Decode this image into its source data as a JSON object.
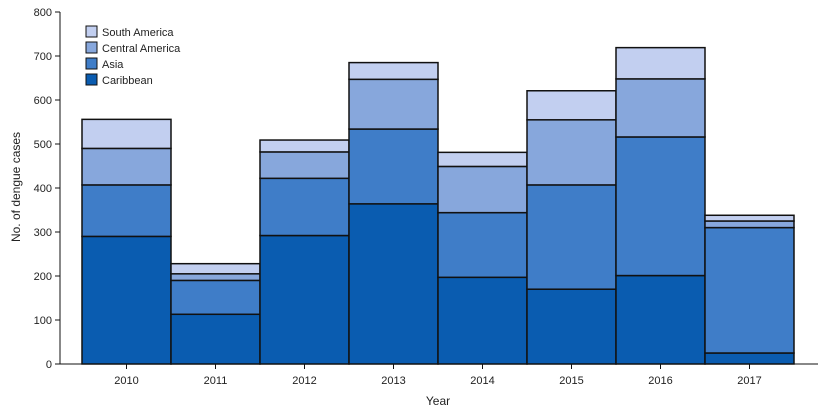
{
  "chart_data": {
    "type": "bar",
    "stacked": true,
    "xlabel": "Year",
    "ylabel": "No. of dengue cases",
    "ylim": [
      0,
      800
    ],
    "yticks": [
      0,
      100,
      200,
      300,
      400,
      500,
      600,
      700,
      800
    ],
    "grid": false,
    "legend_position": "top-left",
    "categories": [
      "2010",
      "2011",
      "2012",
      "2013",
      "2014",
      "2015",
      "2016",
      "2017"
    ],
    "series": [
      {
        "name": "Caribbean",
        "color": "#0a5cb0",
        "values": [
          290,
          113,
          292,
          364,
          197,
          170,
          201,
          25
        ]
      },
      {
        "name": "Asia",
        "color": "#3f7dc8",
        "values": [
          117,
          77,
          130,
          170,
          147,
          237,
          315,
          285
        ]
      },
      {
        "name": "Central America",
        "color": "#87a7dc",
        "values": [
          83,
          15,
          60,
          113,
          105,
          148,
          132,
          15
        ]
      },
      {
        "name": "South America",
        "color": "#c2cff0",
        "values": [
          66,
          23,
          27,
          38,
          32,
          66,
          71,
          13
        ]
      }
    ],
    "legend_order": [
      "South America",
      "Central America",
      "Asia",
      "Caribbean"
    ]
  }
}
